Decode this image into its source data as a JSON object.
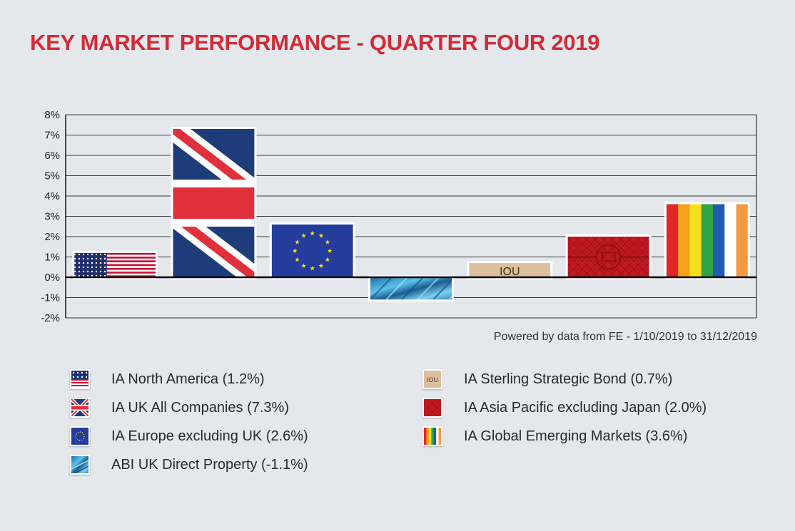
{
  "title": "KEY MARKET PERFORMANCE - QUARTER FOUR 2019",
  "source_note": "Powered by data from FE - 1/10/2019 to 31/12/2019",
  "colors": {
    "title": "#d42a35",
    "background": "#e4e7ec",
    "us_red": "#c8102e",
    "us_blue": "#1f2f6e",
    "uk_red": "#e0303c",
    "uk_blue": "#1e3c7a",
    "eu_blue": "#243c9b",
    "eu_star": "#f7d51d",
    "property_blue": "#3a9fd6",
    "bond_tan": "#dcbf9c",
    "asia_red": "#c21a22",
    "rainbow": [
      "#e32626",
      "#f4a21e",
      "#f5e01e",
      "#2fa34a",
      "#1f5bb0",
      "#ffffff",
      "#f49a45"
    ]
  },
  "bar_decorations": {
    "bond_label": "IOU"
  },
  "chart_data": {
    "type": "bar",
    "title": "KEY MARKET PERFORMANCE - QUARTER FOUR 2019",
    "xlabel": "",
    "ylabel": "",
    "ylim": [
      -2,
      8
    ],
    "yticks": [
      8,
      7,
      6,
      5,
      4,
      3,
      2,
      1,
      0,
      -1,
      -2
    ],
    "ytick_labels": [
      "8%",
      "7%",
      "6%",
      "5%",
      "4%",
      "3%",
      "2%",
      "1%",
      "0%",
      "-1%",
      "-2%"
    ],
    "grid": true,
    "categories": [
      "IA North America",
      "IA UK All Companies",
      "IA Europe excluding UK",
      "ABI UK Direct Property",
      "IA Sterling Strategic Bond",
      "IA Asia Pacific excluding Japan",
      "IA Global Emerging Markets"
    ],
    "values": [
      1.2,
      7.3,
      2.6,
      -1.1,
      0.7,
      2.0,
      3.6
    ],
    "fills": [
      "us-flag",
      "uk-flag",
      "eu-flag",
      "property",
      "iou",
      "asia",
      "rainbow"
    ]
  },
  "legend": [
    {
      "label": "IA North America (1.2%)",
      "icon": "us-flag-icon"
    },
    {
      "label": "IA UK All Companies (7.3%)",
      "icon": "uk-flag-icon"
    },
    {
      "label": "IA Europe excluding UK (2.6%)",
      "icon": "eu-flag-icon"
    },
    {
      "label": "ABI UK Direct Property (-1.1%)",
      "icon": "property-icon"
    },
    {
      "label": "IA Sterling Strategic Bond (0.7%)",
      "icon": "iou-icon"
    },
    {
      "label": "IA Asia Pacific excluding Japan (2.0%)",
      "icon": "asia-pattern-icon"
    },
    {
      "label": "IA Global Emerging Markets (3.6%)",
      "icon": "rainbow-icon"
    }
  ]
}
